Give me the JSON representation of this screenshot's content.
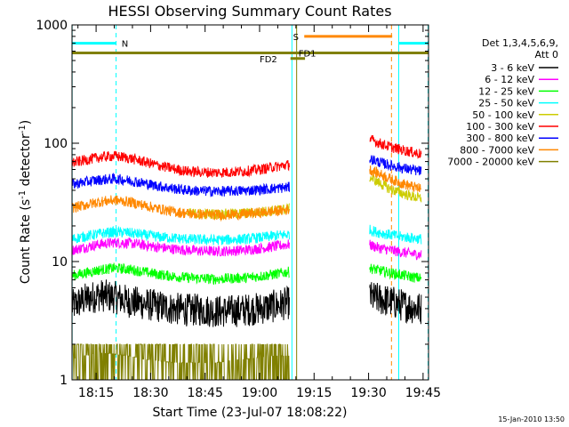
{
  "chart_data": {
    "type": "line",
    "title": "HESSI Observing Summary Count Rates",
    "xlabel": "Start Time (23-Jul-07 18:08:22)",
    "ylabel": "Count Rate (s-1 detector-1)",
    "ylabel_parts": {
      "base": "Count Rate (s",
      "sup1": "-1",
      "mid": " detector",
      "sup2": "-1",
      "end": ")"
    },
    "x_unit": "minutes since 18:00 UT",
    "xlim": [
      8.37,
      106.5
    ],
    "ylim": [
      1,
      1000
    ],
    "yscale": "log",
    "x_ticks": [
      {
        "value": 15,
        "label": "18:15"
      },
      {
        "value": 30,
        "label": "18:30"
      },
      {
        "value": 45,
        "label": "18:45"
      },
      {
        "value": 60,
        "label": "19:00"
      },
      {
        "value": 75,
        "label": "19:15"
      },
      {
        "value": 90,
        "label": "19:30"
      },
      {
        "value": 105,
        "label": "19:45"
      }
    ],
    "y_ticks": [
      {
        "value": 1,
        "label": "1"
      },
      {
        "value": 10,
        "label": "10"
      },
      {
        "value": 100,
        "label": "100"
      },
      {
        "value": 1000,
        "label": "1000"
      }
    ],
    "legend": {
      "position": "right",
      "header": [
        "Det 1,3,4,5,6,9,",
        "Att 0"
      ]
    },
    "series": [
      {
        "name": "3 - 6 keV",
        "color": "#000000",
        "segments": [
          {
            "x": [
              8.4,
              12,
              16,
              20,
              24,
              28,
              32,
              36,
              40,
              44,
              48,
              52,
              56,
              60,
              64,
              68.3
            ],
            "y": [
              4.2,
              4.8,
              5.2,
              5.0,
              4.6,
              4.4,
              4.2,
              4.0,
              3.9,
              3.9,
              3.8,
              3.8,
              3.9,
              4.0,
              4.2,
              4.5
            ]
          },
          {
            "x": [
              90.3,
              93,
              96,
              99,
              102,
              104.5
            ],
            "y": [
              5.0,
              4.8,
              4.6,
              4.3,
              4.1,
              4.0
            ]
          }
        ]
      },
      {
        "name": "6 - 12 keV",
        "color": "#ff00ff",
        "segments": [
          {
            "x": [
              8.4,
              12,
              16,
              20,
              24,
              28,
              32,
              36,
              40,
              44,
              48,
              52,
              56,
              60,
              64,
              68.3
            ],
            "y": [
              12.5,
              13.2,
              14.0,
              14.5,
              14.3,
              13.8,
              13.2,
              12.8,
              12.5,
              12.3,
              12.2,
              12.3,
              12.5,
              12.9,
              13.4,
              14.0
            ]
          },
          {
            "x": [
              90.3,
              93,
              96,
              99,
              102,
              104.5
            ],
            "y": [
              13.8,
              13.0,
              12.5,
              12.0,
              11.6,
              11.4
            ]
          }
        ]
      },
      {
        "name": "12 - 25 keV",
        "color": "#00ff00",
        "segments": [
          {
            "x": [
              8.4,
              12,
              16,
              20,
              24,
              28,
              32,
              36,
              40,
              44,
              48,
              52,
              56,
              60,
              64,
              68.3
            ],
            "y": [
              7.6,
              8.0,
              8.5,
              8.8,
              8.6,
              8.2,
              7.8,
              7.5,
              7.3,
              7.2,
              7.1,
              7.2,
              7.3,
              7.5,
              7.8,
              8.2
            ]
          },
          {
            "x": [
              90.3,
              93,
              96,
              99,
              102,
              104.5
            ],
            "y": [
              8.8,
              8.4,
              8.0,
              7.7,
              7.4,
              7.2
            ]
          }
        ]
      },
      {
        "name": "25 - 50 keV",
        "color": "#00ffff",
        "segments": [
          {
            "x": [
              8.4,
              12,
              16,
              20,
              24,
              28,
              32,
              36,
              40,
              44,
              48,
              52,
              56,
              60,
              64,
              68.3
            ],
            "y": [
              15.5,
              16.3,
              17.2,
              17.8,
              17.5,
              16.8,
              16.2,
              15.8,
              15.5,
              15.3,
              15.2,
              15.3,
              15.5,
              15.9,
              16.5,
              17.0
            ]
          },
          {
            "x": [
              90.3,
              93,
              96,
              99,
              102,
              104.5
            ],
            "y": [
              18.5,
              17.5,
              16.8,
              16.2,
              15.8,
              15.5
            ]
          }
        ]
      },
      {
        "name": "50 - 100 keV",
        "color": "#cccc00",
        "segments": [
          {
            "x": [
              40,
              44,
              48,
              52,
              56,
              60,
              64,
              68.3
            ],
            "y": [
              25.5,
              25.3,
              25.2,
              25.3,
              25.6,
              26.2,
              27.0,
              28.0
            ]
          },
          {
            "x": [
              90.3,
              93,
              96,
              99,
              102,
              104.5
            ],
            "y": [
              52,
              46,
              41,
              38,
              35.5,
              34
            ]
          }
        ]
      },
      {
        "name": "100 - 300 keV",
        "color": "#ff0000",
        "segments": [
          {
            "x": [
              8.4,
              12,
              16,
              20,
              24,
              28,
              32,
              36,
              40,
              44,
              48,
              52,
              56,
              60,
              64,
              68.3
            ],
            "y": [
              68,
              72,
              76,
              78,
              75,
              70,
              65,
              61,
              58,
              57,
              56.5,
              57,
              58,
              60,
              63,
              66
            ]
          },
          {
            "x": [
              90.3,
              93,
              96,
              99,
              102,
              104.5
            ],
            "y": [
              108,
              100,
              93,
              88,
              84,
              81
            ]
          }
        ]
      },
      {
        "name": "300 - 800 keV",
        "color": "#0000ff",
        "segments": [
          {
            "x": [
              8.4,
              12,
              16,
              20,
              24,
              28,
              32,
              36,
              40,
              44,
              48,
              52,
              56,
              60,
              64,
              68.3
            ],
            "y": [
              45,
              47,
              49,
              50,
              48.5,
              46,
              43.5,
              41.5,
              40,
              39.5,
              39.2,
              39.4,
              39.8,
              40.5,
              41.5,
              42.5
            ]
          },
          {
            "x": [
              90.3,
              93,
              96,
              99,
              102,
              104.5
            ],
            "y": [
              74,
              69,
              65,
              62,
              59.5,
              58
            ]
          }
        ]
      },
      {
        "name": "800 - 7000 keV",
        "color": "#ff8800",
        "segments": [
          {
            "x": [
              8.4,
              12,
              16,
              20,
              24,
              28,
              32,
              36,
              40,
              44,
              48,
              52,
              56,
              60,
              64,
              68.3
            ],
            "y": [
              28.5,
              30,
              32,
              33,
              32,
              30,
              28,
              26.5,
              25.5,
              25,
              24.8,
              24.9,
              25.2,
              25.8,
              26.6,
              27.5
            ]
          },
          {
            "x": [
              90.3,
              93,
              96,
              99,
              102,
              104.5
            ],
            "y": [
              60,
              55,
              50,
              46,
              43,
              41
            ]
          }
        ]
      },
      {
        "name": "7000 - 20000 keV",
        "color": "#808000",
        "segments": [
          {
            "x": [
              8.4,
              12,
              16,
              20,
              24,
              28,
              32,
              36,
              40,
              44,
              48,
              52,
              56,
              60,
              64,
              68.3
            ],
            "y": [
              1.5,
              1.6,
              1.7,
              1.65,
              1.6,
              1.5,
              1.45,
              1.4,
              1.4,
              1.4,
              1.4,
              1.45,
              1.5,
              1.55,
              1.6,
              1.6
            ]
          }
        ]
      }
    ],
    "flag_bars": [
      {
        "label": "N",
        "color": "#00ffff",
        "y": 700,
        "segments": [
          [
            8.4,
            20.5
          ],
          [
            98.3,
            106.5
          ]
        ],
        "label_x": 22
      },
      {
        "label": "S",
        "color": "#ff8800",
        "y": 800,
        "segments": [
          [
            72.3,
            96.5
          ]
        ],
        "label_x": 69.2
      },
      {
        "label": "FD1",
        "color": "#808000",
        "y": 580,
        "segments": [
          [
            8.4,
            106.5
          ]
        ],
        "label_x": 70.7
      },
      {
        "label": "FD2",
        "color": "#808000",
        "y": 520,
        "segments": [
          [
            68.5,
            72.5
          ]
        ],
        "label_x": 60
      }
    ],
    "vertical_lines": [
      {
        "x": 8.4,
        "color": "#00ffff",
        "style": "solid"
      },
      {
        "x": 20.5,
        "color": "#00ffff",
        "style": "dashed"
      },
      {
        "x": 68.9,
        "color": "#00ffff",
        "style": "solid"
      },
      {
        "x": 70.2,
        "color": "#808000",
        "style": "solid"
      },
      {
        "x": 96.3,
        "color": "#ff8800",
        "style": "dashed"
      },
      {
        "x": 98.3,
        "color": "#00ffff",
        "style": "solid"
      },
      {
        "x": 106.4,
        "color": "#00ffff",
        "style": "dashed"
      }
    ],
    "footer_timestamp": "15-Jan-2010 13:50",
    "grid": false
  }
}
